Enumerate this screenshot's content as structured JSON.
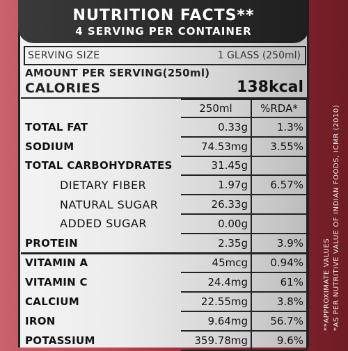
{
  "header": {
    "title": "NUTRITION FACTS**",
    "subtitle": "4 SERVING PER CONTAINER"
  },
  "serving": {
    "label": "SERVING SIZE",
    "value": "1 GLASS (250ml)"
  },
  "amount_per_serving": "AMOUNT PER SERVING(250ml)",
  "calories": {
    "label": "CALORIES",
    "value": "138kcal"
  },
  "columns": {
    "amount": "250ml",
    "rda": "%RDA*"
  },
  "rows": [
    {
      "name": "TOTAL FAT",
      "amount": "0.33g",
      "rda": "1.3%"
    },
    {
      "name": "SODIUM",
      "amount": "74.53mg",
      "rda": "3.55%"
    },
    {
      "name": "TOTAL CARBOHYDRATES",
      "amount": "31.45g",
      "rda": ""
    },
    {
      "name": "DIETARY FIBER",
      "amount": "1.97g",
      "rda": "6.57%"
    },
    {
      "name": "NATURAL SUGAR",
      "amount": "26.33g",
      "rda": ""
    },
    {
      "name": "ADDED SUGAR",
      "amount": "0.00g",
      "rda": ""
    },
    {
      "name": "PROTEIN",
      "amount": "2.35g",
      "rda": "3.9%"
    },
    {
      "name": "VITAMIN A",
      "amount": "45mcg",
      "rda": "0.94%"
    },
    {
      "name": "VITAMIN C",
      "amount": "24.4mg",
      "rda": "61%"
    },
    {
      "name": "CALCIUM",
      "amount": "22.55mg",
      "rda": "3.8%"
    },
    {
      "name": "IRON",
      "amount": "9.64mg",
      "rda": "56.7%"
    },
    {
      "name": "POTASSIUM",
      "amount": "359.78mg",
      "rda": "9.6%"
    }
  ],
  "notes": {
    "approx": "**APPROXIMATE VALUES",
    "rda_basis": "*AS PER NUTRITIVE VALUE OF INDIAN FOODS, ICMR (2010)"
  },
  "colors": {
    "label_red": "#b84a55",
    "header_dark": "#222222"
  }
}
